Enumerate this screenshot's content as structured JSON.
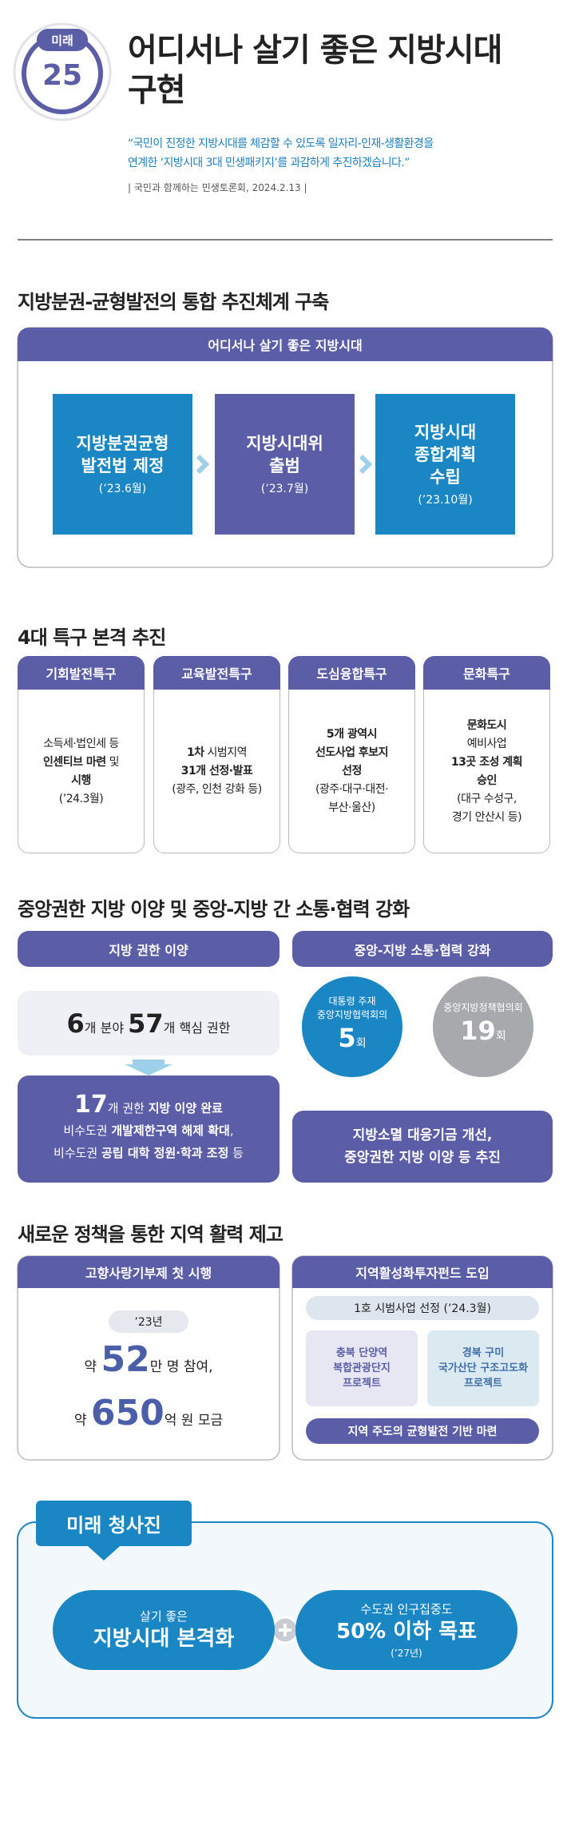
{
  "header": {
    "badge_label": "미래",
    "badge_number": "25",
    "title_lines": [
      "어디서나 살기 좋은 지방시대",
      "구현"
    ],
    "quote_lines": [
      "“국민이 진정한 지방시대를 체감할 수 있도록 일자리-인재-생활환경을",
      "연계한 ‘지방시대 3대 민생패키지’를 과감하게 추진하겠습니다.”"
    ],
    "source": "| 국민과 함께하는 민생토론회, 2024.2.13 |"
  },
  "section1": {
    "title": "지방분권-균형발전의 통합 추진체계 구축",
    "banner": "어디서나 살기 좋은 지방시대",
    "steps": [
      {
        "lines": [
          "지방분권균형",
          "발전법 제정"
        ],
        "date": "(’23.6월)"
      },
      {
        "lines": [
          "지방시대위",
          "출범"
        ],
        "date": "(’23.7월)"
      },
      {
        "lines": [
          "지방시대",
          "종합계획",
          "수립"
        ],
        "date": "(’23.10월)"
      }
    ]
  },
  "section2": {
    "title": "4대 특구 본격 추진",
    "cards": [
      {
        "header": "기회발전특구",
        "lines": [
          [
            {
              "text": "소득세·법인세 등"
            }
          ],
          [
            {
              "text": "인센티브 마련",
              "style": "bold"
            },
            {
              "text": " 및"
            }
          ],
          [
            {
              "text": "시행",
              "style": "bold"
            }
          ],
          [
            {
              "text": "(’24.3월)"
            }
          ]
        ]
      },
      {
        "header": "교육발전특구",
        "lines": [
          [
            {
              "text": "1차",
              "style": "bold"
            },
            {
              "text": " 시범지역"
            }
          ],
          [
            {
              "text": "31개 선정·발표",
              "style": "bold"
            }
          ],
          [
            {
              "text": "(광주, 인천 강화 등)"
            }
          ]
        ]
      },
      {
        "header": "도심융합특구",
        "lines": [
          [
            {
              "text": "5개 광역시",
              "style": "bold"
            }
          ],
          [
            {
              "text": "선도사업 후보지",
              "style": "bold"
            }
          ],
          [
            {
              "text": "선정",
              "style": "bold"
            }
          ],
          [
            {
              "text": "(광주·대구·대전·"
            }
          ],
          [
            {
              "text": "부산·울산)"
            }
          ]
        ]
      },
      {
        "header": "문화특구",
        "lines": [
          [
            {
              "text": "문화도시",
              "style": "bold"
            }
          ],
          [
            {
              "text": "예비사업"
            }
          ],
          [
            {
              "text": "13곳 조성 계획",
              "style": "bold"
            }
          ],
          [
            {
              "text": "승인",
              "style": "bold"
            }
          ],
          [
            {
              "text": "(대구 수성구,"
            }
          ],
          [
            {
              "text": "경기 안산시 등)"
            }
          ]
        ]
      }
    ]
  },
  "section3": {
    "title": "중앙권한 지방 이양 및 중앙-지방 간 소통·협력 강화",
    "left": {
      "header": "지방 권한 이양",
      "pill": [
        [
          {
            "text": "6",
            "style": "num"
          },
          {
            "text": "개 분야 "
          },
          {
            "text": "57",
            "style": "num"
          },
          {
            "text": "개 핵심 권한"
          }
        ]
      ],
      "result": [
        [
          {
            "text": "17",
            "style": "num"
          },
          {
            "text": "개 권한 "
          },
          {
            "text": "지방 이양 완료",
            "style": "bold"
          }
        ],
        [
          {
            "text": "비수도권 "
          },
          {
            "text": "개발제한구역 해제 확대",
            "style": "bold"
          },
          {
            "text": ","
          }
        ],
        [
          {
            "text": "비수도권 "
          },
          {
            "text": "공립 대학 정원·학과 조정",
            "style": "bold"
          },
          {
            "text": " 등"
          }
        ]
      ]
    },
    "right": {
      "header": "중앙-지방 소통·협력 강화",
      "circles": [
        {
          "lines": [
            "대통령 주재",
            "중앙지방협력회의"
          ],
          "count": [
            [
              {
                "text": "5",
                "style": "num"
              },
              {
                "text": "회"
              }
            ]
          ]
        },
        {
          "lines": [
            "중앙지방정책협의회"
          ],
          "count": [
            [
              {
                "text": "19",
                "style": "num"
              },
              {
                "text": "회"
              }
            ]
          ]
        }
      ],
      "result": [
        "지방소멸 대응기금 개선,",
        "중앙권한 지방 이양 등 추진"
      ]
    }
  },
  "section4": {
    "title": "새로운 정책을 통한 지역 활력 제고",
    "left": {
      "header": "고향사랑기부제 첫 시행",
      "year": "’23년",
      "lines": [
        [
          {
            "text": "약 "
          },
          {
            "text": "52",
            "style": "num"
          },
          {
            "text": "만 명 참여,"
          }
        ],
        [
          {
            "text": "약 "
          },
          {
            "text": "650",
            "style": "num"
          },
          {
            "text": "억 원 모금"
          }
        ]
      ]
    },
    "right": {
      "header": "지역활성화투자펀드 도입",
      "pill": "1호 시범사업 선정 (’24.3월)",
      "projects": [
        [
          "충북 단양역",
          "복합관광단지",
          "프로젝트"
        ],
        [
          "경북 구미",
          "국가산단 구조고도화",
          "프로젝트"
        ]
      ],
      "footer": "지역 주도의 균형발전 기반 마련"
    }
  },
  "blueprint": {
    "tag": "미래 청사진",
    "goals": [
      {
        "lines": [
          "살기 좋은"
        ],
        "main": "지방시대 본격화"
      },
      {
        "lines": [
          "수도권 인구집중도"
        ],
        "main": "50% 이하 목표",
        "note": "(’27년)"
      }
    ]
  }
}
